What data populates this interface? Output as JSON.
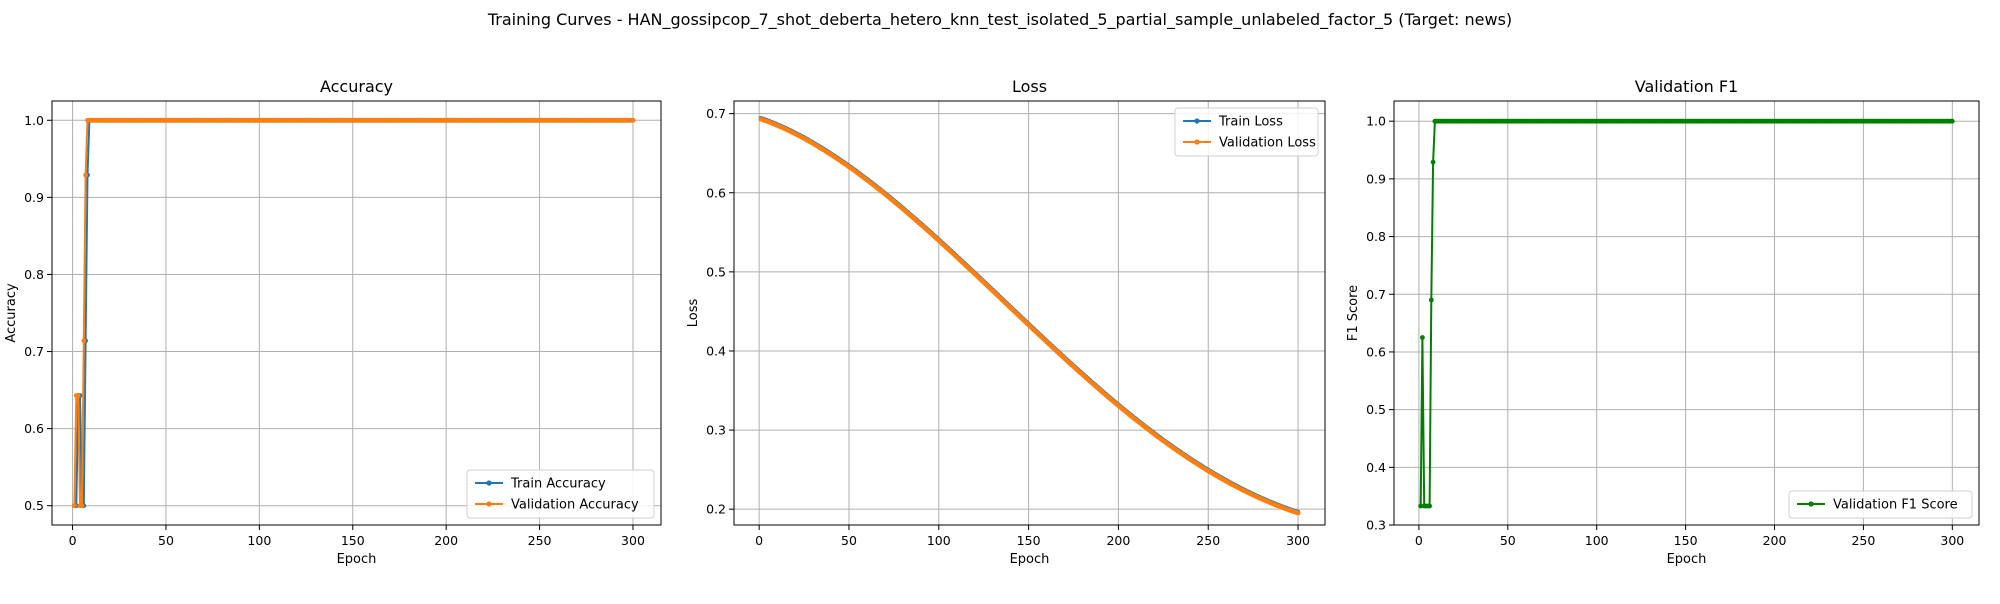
{
  "figure_title": "Training Curves - HAN_gossipcop_7_shot_deberta_hetero_knn_test_isolated_5_partial_sample_unlabeled_factor_5 (Target: news)",
  "colors": {
    "train": "#1f77b4",
    "validation": "#ff7f0e",
    "f1": "#008000",
    "grid": "#b0b0b0"
  },
  "chart_data": [
    {
      "type": "line",
      "title": "Accuracy",
      "xlabel": "Epoch",
      "ylabel": "Accuracy",
      "xlim": [
        -11,
        315
      ],
      "ylim": [
        0.475,
        1.025
      ],
      "xticks": [
        0,
        50,
        100,
        150,
        200,
        250,
        300
      ],
      "yticks": [
        0.5,
        0.6,
        0.7,
        0.8,
        0.9,
        1.0
      ],
      "ytick_labels": [
        "0.5",
        "0.6",
        "0.7",
        "0.8",
        "0.9",
        "1.0"
      ],
      "grid": true,
      "legend_position": "lower-right",
      "series": [
        {
          "name": "Train Accuracy",
          "color_key": "train",
          "initial": [
            [
              1,
              0.5
            ],
            [
              2,
              0.5
            ],
            [
              3,
              0.643
            ],
            [
              4,
              0.643
            ],
            [
              5,
              0.5
            ],
            [
              6,
              0.5
            ],
            [
              7,
              0.714
            ],
            [
              8,
              0.929
            ],
            [
              9,
              1.0
            ],
            [
              10,
              1.0
            ]
          ],
          "plateau": 1.0,
          "end": 300
        },
        {
          "name": "Validation Accuracy",
          "color_key": "validation",
          "initial": [
            [
              1,
              0.5
            ],
            [
              2,
              0.643
            ],
            [
              3,
              0.643
            ],
            [
              4,
              0.5
            ],
            [
              5,
              0.5
            ],
            [
              6,
              0.714
            ],
            [
              7,
              0.929
            ],
            [
              8,
              1.0
            ],
            [
              9,
              1.0
            ],
            [
              10,
              1.0
            ]
          ],
          "plateau": 1.0,
          "end": 300
        }
      ]
    },
    {
      "type": "line",
      "title": "Loss",
      "xlabel": "Epoch",
      "ylabel": "Loss",
      "xlim": [
        -14,
        315
      ],
      "ylim": [
        0.18,
        0.716
      ],
      "xticks": [
        0,
        50,
        100,
        150,
        200,
        250,
        300
      ],
      "yticks": [
        0.2,
        0.3,
        0.4,
        0.5,
        0.6,
        0.7
      ],
      "ytick_labels": [
        "0.2",
        "0.3",
        "0.4",
        "0.5",
        "0.6",
        "0.7"
      ],
      "grid": true,
      "legend_position": "top-right",
      "series": [
        {
          "name": "Train Loss",
          "color_key": "train",
          "start": 0.694,
          "end_value": 0.196,
          "end": 300
        },
        {
          "name": "Validation Loss",
          "color_key": "validation",
          "start": 0.693,
          "end_value": 0.195,
          "end": 300
        }
      ]
    },
    {
      "type": "line",
      "title": "Validation F1",
      "xlabel": "Epoch",
      "ylabel": "F1 Score",
      "xlim": [
        -14,
        315
      ],
      "ylim": [
        0.3,
        1.035
      ],
      "xticks": [
        0,
        50,
        100,
        150,
        200,
        250,
        300
      ],
      "yticks": [
        0.3,
        0.4,
        0.5,
        0.6,
        0.7,
        0.8,
        0.9,
        1.0
      ],
      "ytick_labels": [
        "0.3",
        "0.4",
        "0.5",
        "0.6",
        "0.7",
        "0.8",
        "0.9",
        "1.0"
      ],
      "grid": true,
      "legend_position": "lower-right",
      "series": [
        {
          "name": "Validation F1 Score",
          "color_key": "f1",
          "initial": [
            [
              1,
              0.333
            ],
            [
              2,
              0.625
            ],
            [
              3,
              0.333
            ],
            [
              4,
              0.333
            ],
            [
              5,
              0.333
            ],
            [
              6,
              0.333
            ],
            [
              7,
              0.69
            ],
            [
              8,
              0.929
            ],
            [
              9,
              1.0
            ],
            [
              10,
              1.0
            ]
          ],
          "plateau": 1.0,
          "end": 300
        }
      ]
    }
  ]
}
